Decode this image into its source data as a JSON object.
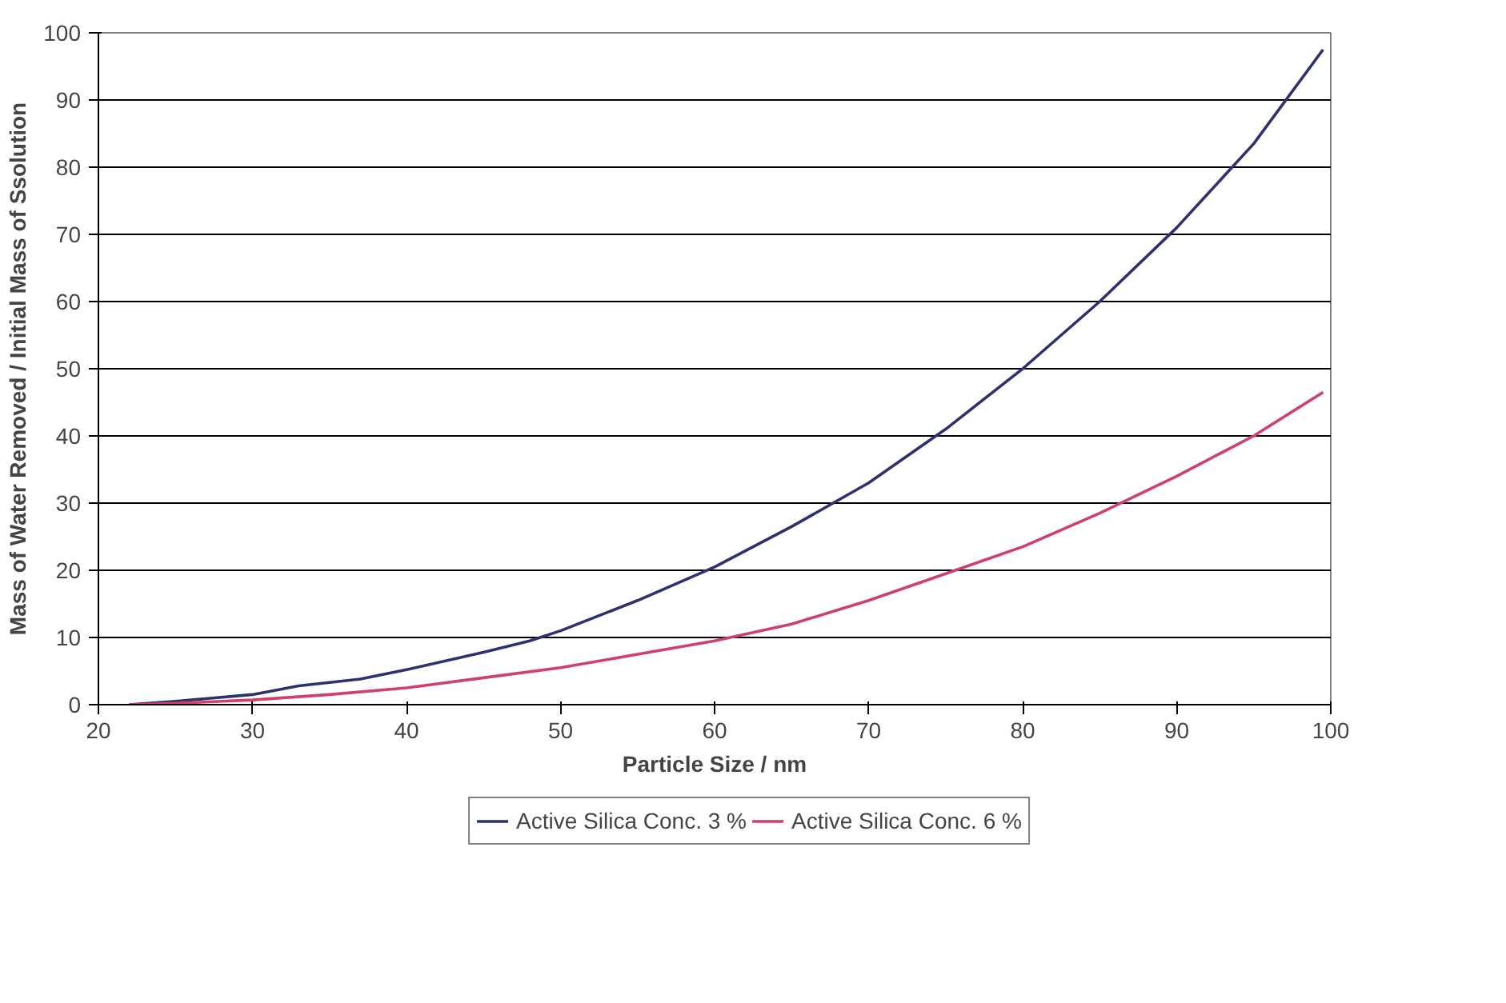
{
  "chart_data": {
    "type": "line",
    "xlabel": "Particle Size / nm",
    "ylabel": "Mass of Water Removed / Initial Mass of Ssolution",
    "xlim": [
      20,
      100
    ],
    "xticks": [
      20,
      30,
      40,
      50,
      60,
      70,
      80,
      90,
      100
    ],
    "ylim": [
      0,
      100
    ],
    "yticks": [
      0,
      10,
      20,
      30,
      40,
      50,
      60,
      70,
      80,
      90,
      100
    ],
    "grid": "y",
    "legend": "bottom",
    "marker": "none",
    "line_style": "solid",
    "series": [
      {
        "name": "Active Silica Conc. 3 %",
        "color": "#2e3070",
        "x": [
          22,
          25,
          30,
          33,
          37,
          40,
          45,
          48,
          50,
          55,
          60,
          65,
          70,
          75,
          80,
          85,
          90,
          95,
          99.5
        ],
        "values": [
          0,
          0.5,
          1.5,
          2.8,
          3.8,
          5.2,
          7.8,
          9.5,
          11,
          15.5,
          20.5,
          26.5,
          33,
          41,
          50,
          60,
          71,
          83.5,
          97.5
        ]
      },
      {
        "name": "Active Silica Conc. 6 %",
        "color": "#d0406a",
        "x": [
          22,
          25,
          30,
          35,
          40,
          45,
          50,
          55,
          60,
          65,
          70,
          75,
          80,
          85,
          90,
          95,
          99.5
        ],
        "values": [
          0,
          0.2,
          0.7,
          1.5,
          2.5,
          4,
          5.5,
          7.5,
          9.5,
          12,
          15.5,
          19.5,
          23.5,
          28.5,
          34,
          40,
          46.5
        ]
      }
    ]
  }
}
